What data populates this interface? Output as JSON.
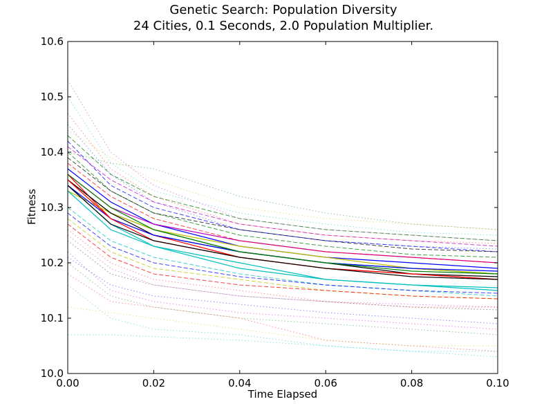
{
  "chart_data": {
    "type": "line",
    "title": "Genetic Search: Population Diversity",
    "subtitle": "24 Cities, 0.1 Seconds, 2.0 Population Multiplier.",
    "xlabel": "Time Elapsed",
    "ylabel": "Fitness",
    "xlim": [
      0.0,
      0.1
    ],
    "ylim": [
      10.0,
      10.6
    ],
    "xticks": [
      "0.00",
      "0.02",
      "0.04",
      "0.06",
      "0.08",
      "0.10"
    ],
    "yticks": [
      "10.0",
      "10.1",
      "10.2",
      "10.3",
      "10.4",
      "10.5",
      "10.6"
    ],
    "grid": false,
    "legend": "none",
    "colors": [
      "#0000ff",
      "#008000",
      "#ff0000",
      "#00bfbf",
      "#bf00bf",
      "#bfbf00",
      "#000000"
    ],
    "series": [
      {
        "style": "solid",
        "color": "#0000ff",
        "x": [
          0,
          0.01,
          0.02,
          0.04,
          0.06,
          0.08,
          0.1
        ],
        "y": [
          10.37,
          10.31,
          10.27,
          10.23,
          10.21,
          10.2,
          10.19
        ]
      },
      {
        "style": "solid",
        "color": "#008000",
        "x": [
          0,
          0.01,
          0.02,
          0.04,
          0.06,
          0.08,
          0.1
        ],
        "y": [
          10.35,
          10.29,
          10.26,
          10.22,
          10.2,
          10.19,
          10.18
        ]
      },
      {
        "style": "solid",
        "color": "#ff0000",
        "x": [
          0,
          0.01,
          0.02,
          0.04,
          0.06,
          0.08,
          0.1
        ],
        "y": [
          10.36,
          10.28,
          10.25,
          10.21,
          10.19,
          10.18,
          10.17
        ]
      },
      {
        "style": "solid",
        "color": "#00bfbf",
        "x": [
          0,
          0.01,
          0.02,
          0.04,
          0.06,
          0.08,
          0.1
        ],
        "y": [
          10.34,
          10.27,
          10.23,
          10.19,
          10.17,
          10.16,
          10.155
        ]
      },
      {
        "style": "solid",
        "color": "#bf00bf",
        "x": [
          0,
          0.01,
          0.02,
          0.04,
          0.06,
          0.08,
          0.1
        ],
        "y": [
          10.36,
          10.3,
          10.27,
          10.24,
          10.22,
          10.21,
          10.2
        ]
      },
      {
        "style": "solid",
        "color": "#bfbf00",
        "x": [
          0,
          0.01,
          0.02,
          0.04,
          0.06,
          0.08,
          0.1
        ],
        "y": [
          10.33,
          10.29,
          10.26,
          10.23,
          10.21,
          10.19,
          10.18
        ]
      },
      {
        "style": "solid",
        "color": "#000000",
        "x": [
          0,
          0.01,
          0.02,
          0.04,
          0.06,
          0.08,
          0.1
        ],
        "y": [
          10.35,
          10.29,
          10.25,
          10.22,
          10.2,
          10.18,
          10.175
        ]
      },
      {
        "style": "solid",
        "color": "#0000ff",
        "x": [
          0,
          0.01,
          0.02,
          0.04,
          0.06,
          0.08,
          0.1
        ],
        "y": [
          10.34,
          10.28,
          10.25,
          10.22,
          10.2,
          10.19,
          10.185
        ]
      },
      {
        "style": "solid",
        "color": "#ff0000",
        "x": [
          0,
          0.01,
          0.02,
          0.04,
          0.06,
          0.08,
          0.1
        ],
        "y": [
          10.35,
          10.28,
          10.24,
          10.21,
          10.19,
          10.18,
          10.17
        ]
      },
      {
        "style": "solid",
        "color": "#008000",
        "x": [
          0,
          0.01,
          0.02,
          0.04,
          0.06,
          0.08,
          0.1
        ],
        "y": [
          10.36,
          10.3,
          10.26,
          10.22,
          10.2,
          10.185,
          10.18
        ]
      },
      {
        "style": "solid",
        "color": "#00bfbf",
        "x": [
          0,
          0.01,
          0.02,
          0.04,
          0.06,
          0.08,
          0.1
        ],
        "y": [
          10.33,
          10.26,
          10.23,
          10.2,
          10.17,
          10.16,
          10.15
        ]
      },
      {
        "style": "solid",
        "color": "#000000",
        "x": [
          0,
          0.01,
          0.02,
          0.04,
          0.06,
          0.08,
          0.1
        ],
        "y": [
          10.34,
          10.27,
          10.24,
          10.21,
          10.19,
          10.175,
          10.17
        ]
      },
      {
        "style": "dashed",
        "color": "#0000ff",
        "x": [
          0,
          0.01,
          0.02,
          0.04,
          0.06,
          0.08,
          0.1
        ],
        "y": [
          10.42,
          10.34,
          10.3,
          10.26,
          10.24,
          10.23,
          10.22
        ]
      },
      {
        "style": "dashed",
        "color": "#008000",
        "x": [
          0,
          0.01,
          0.02,
          0.04,
          0.06,
          0.08,
          0.1
        ],
        "y": [
          10.4,
          10.33,
          10.29,
          10.25,
          10.23,
          10.215,
          10.21
        ]
      },
      {
        "style": "dashed",
        "color": "#ff0000",
        "x": [
          0,
          0.01,
          0.02,
          0.04,
          0.06,
          0.08,
          0.1
        ],
        "y": [
          10.38,
          10.32,
          10.28,
          10.24,
          10.22,
          10.21,
          10.2
        ]
      },
      {
        "style": "dashed",
        "color": "#bf00bf",
        "x": [
          0,
          0.01,
          0.02,
          0.04,
          0.06,
          0.08,
          0.1
        ],
        "y": [
          10.41,
          10.35,
          10.31,
          10.27,
          10.25,
          10.24,
          10.23
        ]
      },
      {
        "style": "dashed",
        "color": "#00bfbf",
        "x": [
          0,
          0.01,
          0.02,
          0.04,
          0.06,
          0.08,
          0.1
        ],
        "y": [
          10.3,
          10.24,
          10.21,
          10.18,
          10.16,
          10.15,
          10.14
        ]
      },
      {
        "style": "dashed",
        "color": "#bfbf00",
        "x": [
          0,
          0.01,
          0.02,
          0.04,
          0.06,
          0.08,
          0.1
        ],
        "y": [
          10.28,
          10.22,
          10.19,
          10.17,
          10.15,
          10.14,
          10.135
        ]
      },
      {
        "style": "dashed",
        "color": "#000000",
        "x": [
          0,
          0.01,
          0.02,
          0.04,
          0.06,
          0.08,
          0.1
        ],
        "y": [
          10.39,
          10.33,
          10.29,
          10.26,
          10.24,
          10.225,
          10.22
        ]
      },
      {
        "style": "dashed",
        "color": "#0000ff",
        "x": [
          0,
          0.01,
          0.02,
          0.04,
          0.06,
          0.08,
          0.1
        ],
        "y": [
          10.29,
          10.23,
          10.2,
          10.175,
          10.16,
          10.15,
          10.145
        ]
      },
      {
        "style": "dashed",
        "color": "#ff0000",
        "x": [
          0,
          0.01,
          0.02,
          0.04,
          0.06,
          0.08,
          0.1
        ],
        "y": [
          10.27,
          10.21,
          10.18,
          10.16,
          10.15,
          10.14,
          10.135
        ]
      },
      {
        "style": "dashed",
        "color": "#008000",
        "x": [
          0,
          0.01,
          0.02,
          0.04,
          0.06,
          0.08,
          0.1
        ],
        "y": [
          10.43,
          10.36,
          10.32,
          10.28,
          10.26,
          10.25,
          10.24
        ]
      },
      {
        "style": "dotted",
        "color": "#bf00bf",
        "x": [
          0,
          0.01,
          0.02,
          0.04,
          0.06,
          0.08,
          0.1
        ],
        "y": [
          10.53,
          10.4,
          10.34,
          10.28,
          10.26,
          10.25,
          10.24
        ]
      },
      {
        "style": "dotted",
        "color": "#00bfbf",
        "x": [
          0,
          0.01,
          0.02,
          0.04,
          0.06,
          0.08,
          0.1
        ],
        "y": [
          10.5,
          10.38,
          10.33,
          10.29,
          10.27,
          10.255,
          10.25
        ]
      },
      {
        "style": "dotted",
        "color": "#ff0000",
        "x": [
          0,
          0.01,
          0.02,
          0.04,
          0.06,
          0.08,
          0.1
        ],
        "y": [
          10.47,
          10.37,
          10.32,
          10.27,
          10.25,
          10.24,
          10.235
        ]
      },
      {
        "style": "dotted",
        "color": "#0000ff",
        "x": [
          0,
          0.01,
          0.02,
          0.04,
          0.06,
          0.08,
          0.1
        ],
        "y": [
          10.45,
          10.36,
          10.31,
          10.26,
          10.24,
          10.23,
          10.225
        ]
      },
      {
        "style": "dotted",
        "color": "#bfbf00",
        "x": [
          0,
          0.01,
          0.02,
          0.04,
          0.06,
          0.08,
          0.1
        ],
        "y": [
          10.44,
          10.39,
          10.35,
          10.3,
          10.28,
          10.27,
          10.26
        ]
      },
      {
        "style": "dotted",
        "color": "#008000",
        "x": [
          0,
          0.01,
          0.02,
          0.04,
          0.06,
          0.08,
          0.1
        ],
        "y": [
          10.2,
          10.14,
          10.12,
          10.1,
          10.09,
          10.08,
          10.07
        ]
      },
      {
        "style": "dotted",
        "color": "#bf00bf",
        "x": [
          0,
          0.01,
          0.02,
          0.04,
          0.06,
          0.08,
          0.1
        ],
        "y": [
          10.22,
          10.15,
          10.13,
          10.11,
          10.1,
          10.09,
          10.08
        ]
      },
      {
        "style": "dotted",
        "color": "#00bfbf",
        "x": [
          0,
          0.01,
          0.02,
          0.04,
          0.06,
          0.08,
          0.1
        ],
        "y": [
          10.16,
          10.1,
          10.08,
          10.07,
          10.05,
          10.04,
          10.03
        ]
      },
      {
        "style": "dotted",
        "color": "#ff0000",
        "x": [
          0,
          0.01,
          0.02,
          0.04,
          0.06,
          0.08,
          0.1
        ],
        "y": [
          10.18,
          10.13,
          10.12,
          10.1,
          10.06,
          10.05,
          10.04
        ]
      },
      {
        "style": "dotted",
        "color": "#0000ff",
        "x": [
          0,
          0.01,
          0.02,
          0.04,
          0.06,
          0.08,
          0.1
        ],
        "y": [
          10.21,
          10.16,
          10.14,
          10.125,
          10.11,
          10.1,
          10.09
        ]
      },
      {
        "style": "dotted",
        "color": "#000000",
        "x": [
          0,
          0.01,
          0.02,
          0.04,
          0.06,
          0.08,
          0.1
        ],
        "y": [
          10.24,
          10.18,
          10.16,
          10.14,
          10.13,
          10.12,
          10.115
        ]
      },
      {
        "style": "dotted",
        "color": "#bfbf00",
        "x": [
          0,
          0.01,
          0.02,
          0.04,
          0.06,
          0.08,
          0.1
        ],
        "y": [
          10.12,
          10.11,
          10.1,
          10.08,
          10.06,
          10.05,
          10.05
        ]
      },
      {
        "style": "dotted",
        "color": "#00bfbf",
        "x": [
          0,
          0.005,
          0.01,
          0.04,
          0.06,
          0.08,
          0.1
        ],
        "y": [
          10.07,
          10.07,
          10.07,
          10.06,
          10.05,
          10.04,
          10.04
        ]
      },
      {
        "style": "dotted",
        "color": "#008000",
        "x": [
          0,
          0.01,
          0.02,
          0.04,
          0.06,
          0.08,
          0.1
        ],
        "y": [
          10.4,
          10.38,
          10.37,
          10.32,
          10.29,
          10.27,
          10.26
        ]
      },
      {
        "style": "dotted",
        "color": "#ff0000",
        "x": [
          0,
          0.01,
          0.02,
          0.04,
          0.06,
          0.08,
          0.1
        ],
        "y": [
          10.26,
          10.2,
          10.17,
          10.15,
          10.13,
          10.12,
          10.12
        ]
      },
      {
        "style": "dotted",
        "color": "#bf00bf",
        "x": [
          0,
          0.01,
          0.02,
          0.04,
          0.06,
          0.08,
          0.1
        ],
        "y": [
          10.25,
          10.19,
          10.16,
          10.14,
          10.13,
          10.125,
          10.12
        ]
      }
    ]
  }
}
